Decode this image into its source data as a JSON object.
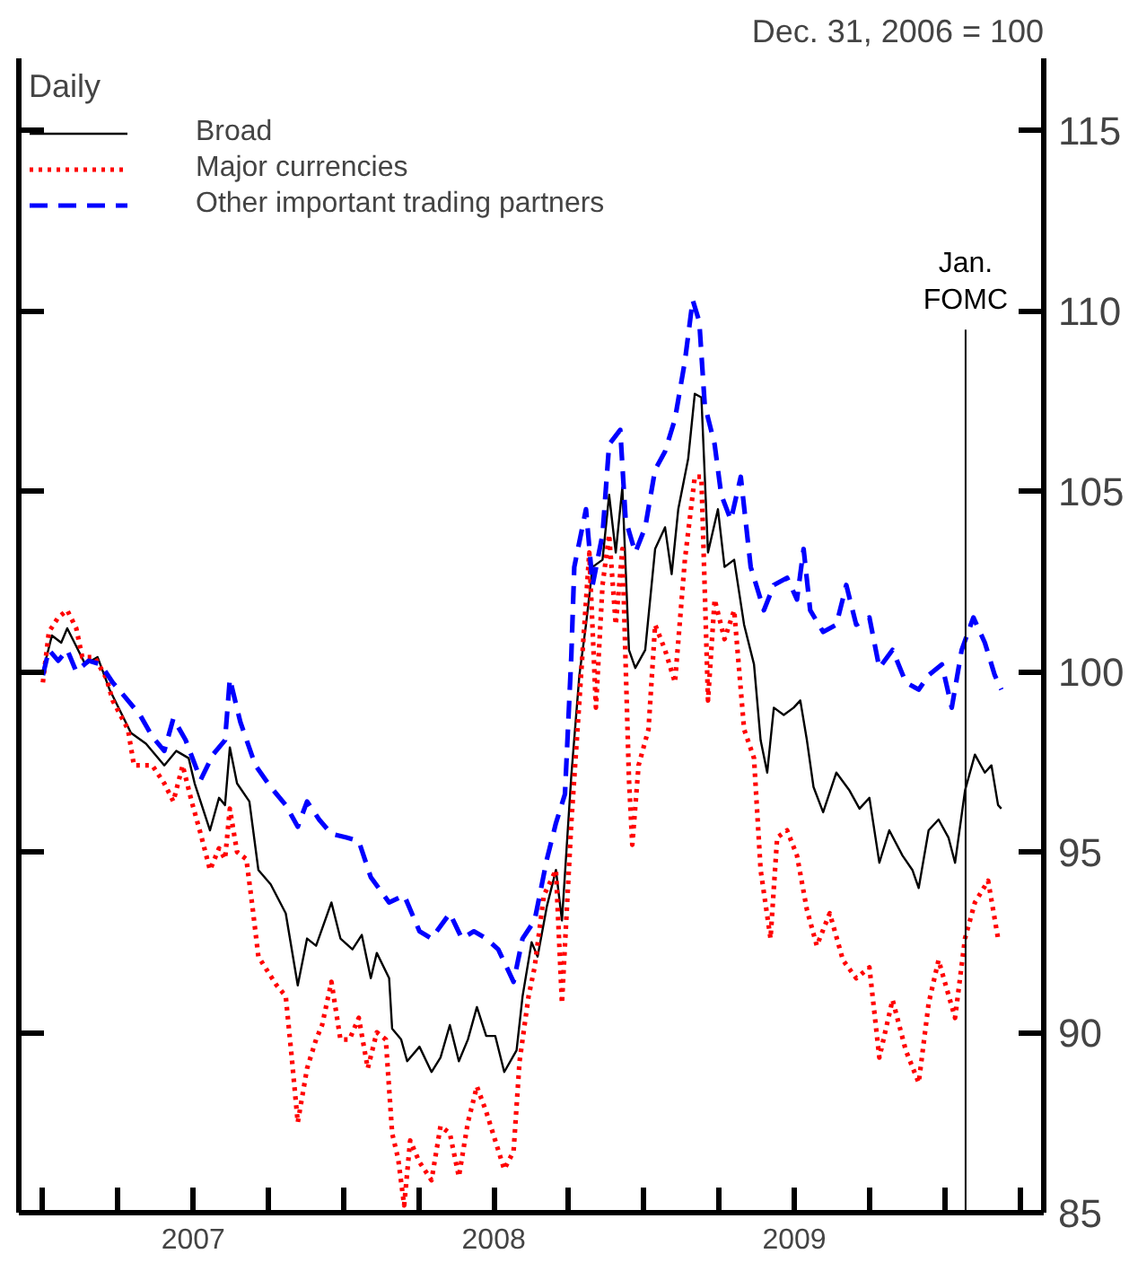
{
  "chart_data": {
    "type": "line",
    "ylabel": "Dec. 31, 2006 = 100",
    "legend_title": "Daily",
    "legend": "top left",
    "xlim": [
      2006.92,
      2010.33
    ],
    "ylim": [
      85,
      117
    ],
    "yticks": [
      85,
      90,
      95,
      100,
      105,
      110,
      115
    ],
    "xticks": [
      {
        "value": 2007,
        "label": null
      },
      {
        "value": 2007.25,
        "label": null
      },
      {
        "value": 2007.5,
        "label": "2007"
      },
      {
        "value": 2007.75,
        "label": null
      },
      {
        "value": 2008,
        "label": null
      },
      {
        "value": 2008.25,
        "label": null
      },
      {
        "value": 2008.5,
        "label": "2008"
      },
      {
        "value": 2008.75,
        "label": null
      },
      {
        "value": 2009,
        "label": null
      },
      {
        "value": 2009.25,
        "label": null
      },
      {
        "value": 2009.5,
        "label": "2009"
      },
      {
        "value": 2009.75,
        "label": null
      },
      {
        "value": 2010,
        "label": null
      },
      {
        "value": 2010.25,
        "label": null
      }
    ],
    "ref_lines": [
      {
        "axis": "x",
        "value": 2010.07,
        "label": "Jan.\nFOMC",
        "color": "#000000"
      }
    ],
    "series": [
      {
        "name": "Broad",
        "color": "#000000",
        "line_style": "solid",
        "x": [
          2007.0,
          2007.03,
          2007.061,
          2007.081,
          2007.111,
          2007.141,
          2007.182,
          2007.222,
          2007.293,
          2007.343,
          2007.404,
          2007.444,
          2007.485,
          2007.505,
          2007.556,
          2007.586,
          2007.606,
          2007.622,
          2007.646,
          2007.687,
          2007.717,
          2007.758,
          2007.808,
          2007.848,
          2007.879,
          2007.909,
          2007.96,
          2007.99,
          2008.03,
          2008.061,
          2008.091,
          2008.111,
          2008.152,
          2008.162,
          2008.192,
          2008.212,
          2008.253,
          2008.293,
          2008.323,
          2008.354,
          2008.384,
          2008.414,
          2008.444,
          2008.475,
          2008.505,
          2008.535,
          2008.576,
          2008.596,
          2008.626,
          2008.646,
          2008.677,
          2008.707,
          2008.727,
          2008.758,
          2008.785,
          2008.807,
          2008.829,
          2008.862,
          2008.884,
          2008.906,
          2008.928,
          2008.95,
          2008.971,
          2009.004,
          2009.037,
          2009.07,
          2009.092,
          2009.114,
          2009.147,
          2009.169,
          2009.191,
          2009.213,
          2009.246,
          2009.268,
          2009.3,
          2009.333,
          2009.366,
          2009.388,
          2009.41,
          2009.432,
          2009.465,
          2009.498,
          2009.52,
          2009.542,
          2009.564,
          2009.596,
          2009.64,
          2009.684,
          2009.717,
          2009.75,
          2009.783,
          2009.816,
          2009.86,
          2009.893,
          2009.914,
          2009.947,
          2009.98,
          2010.013,
          2010.035,
          2010.068,
          2010.101,
          2010.134,
          2010.156,
          2010.178,
          2010.189
        ],
        "values": [
          100.0,
          101.0,
          100.8,
          101.2,
          100.7,
          100.2,
          100.4,
          99.5,
          98.3,
          98.0,
          97.4,
          97.8,
          97.6,
          96.9,
          95.6,
          96.5,
          96.3,
          97.9,
          96.9,
          96.4,
          94.5,
          94.1,
          93.3,
          91.3,
          92.6,
          92.4,
          93.6,
          92.6,
          92.3,
          92.7,
          91.5,
          92.2,
          91.5,
          90.1,
          89.8,
          89.2,
          89.6,
          88.9,
          89.3,
          90.2,
          89.2,
          89.8,
          90.7,
          89.9,
          89.9,
          88.9,
          89.5,
          91.0,
          92.5,
          92.1,
          93.5,
          94.5,
          93.1,
          97.1,
          99.9,
          101.3,
          102.9,
          103.1,
          104.9,
          103.3,
          105.1,
          100.6,
          100.1,
          100.6,
          103.4,
          104.0,
          102.7,
          104.5,
          105.9,
          107.7,
          107.6,
          103.3,
          104.5,
          102.9,
          103.1,
          101.3,
          100.2,
          98.1,
          97.2,
          99.0,
          98.8,
          99.0,
          99.2,
          98.1,
          96.8,
          96.1,
          97.2,
          96.7,
          96.2,
          96.5,
          94.7,
          95.6,
          94.9,
          94.5,
          94.0,
          95.6,
          95.9,
          95.4,
          94.7,
          96.7,
          97.7,
          97.2,
          97.4,
          96.3,
          96.2
        ]
      },
      {
        "name": "Major currencies",
        "color": "#ff0000",
        "line_style": "dotted",
        "x": [
          2007.0,
          2007.02,
          2007.051,
          2007.081,
          2007.111,
          2007.131,
          2007.172,
          2007.212,
          2007.232,
          2007.283,
          2007.303,
          2007.364,
          2007.404,
          2007.434,
          2007.465,
          2007.495,
          2007.525,
          2007.556,
          2007.586,
          2007.606,
          2007.622,
          2007.646,
          2007.677,
          2007.697,
          2007.717,
          2007.747,
          2007.778,
          2007.808,
          2007.828,
          2007.848,
          2007.879,
          2007.909,
          2007.929,
          2007.96,
          2007.99,
          2008.02,
          2008.051,
          2008.081,
          2008.111,
          2008.141,
          2008.162,
          2008.182,
          2008.202,
          2008.222,
          2008.253,
          2008.293,
          2008.323,
          2008.354,
          2008.384,
          2008.414,
          2008.444,
          2008.475,
          2008.505,
          2008.535,
          2008.566,
          2008.586,
          2008.616,
          2008.636,
          2008.667,
          2008.707,
          2008.727,
          2008.758,
          2008.778,
          2008.796,
          2008.818,
          2008.84,
          2008.862,
          2008.884,
          2008.906,
          2008.928,
          2008.95,
          2008.961,
          2008.982,
          2009.015,
          2009.037,
          2009.07,
          2009.103,
          2009.136,
          2009.169,
          2009.191,
          2009.213,
          2009.235,
          2009.268,
          2009.3,
          2009.333,
          2009.366,
          2009.388,
          2009.421,
          2009.443,
          2009.476,
          2009.509,
          2009.542,
          2009.575,
          2009.618,
          2009.662,
          2009.706,
          2009.75,
          2009.783,
          2009.827,
          2009.871,
          2009.914,
          2009.947,
          2009.98,
          2010.035,
          2010.068,
          2010.101,
          2010.145,
          2010.178
        ],
        "values": [
          99.7,
          101.1,
          101.5,
          101.7,
          101.2,
          100.4,
          100.4,
          99.8,
          99.2,
          98.4,
          97.4,
          97.4,
          96.9,
          96.4,
          97.4,
          96.4,
          95.5,
          94.5,
          95.1,
          94.8,
          96.2,
          95.0,
          94.8,
          93.5,
          92.1,
          91.7,
          91.3,
          91.0,
          89.3,
          87.5,
          89.0,
          89.8,
          90.2,
          91.4,
          89.8,
          89.8,
          90.4,
          89.0,
          90.0,
          89.8,
          87.2,
          86.5,
          85.2,
          87.0,
          86.4,
          85.9,
          87.4,
          87.2,
          86.0,
          87.5,
          88.5,
          87.8,
          87.0,
          86.2,
          86.7,
          89.2,
          91.0,
          91.8,
          93.8,
          94.5,
          90.8,
          95.8,
          98.3,
          100.6,
          103.3,
          99.0,
          102.4,
          103.8,
          101.3,
          103.4,
          97.0,
          95.2,
          97.4,
          98.4,
          101.3,
          100.6,
          99.7,
          103.1,
          105.4,
          105.4,
          99.2,
          102.0,
          100.9,
          101.7,
          98.4,
          97.6,
          94.5,
          92.6,
          95.4,
          95.6,
          94.9,
          93.4,
          92.4,
          93.3,
          92.0,
          91.5,
          91.8,
          89.3,
          90.9,
          89.5,
          88.6,
          90.8,
          92.0,
          90.4,
          92.6,
          93.6,
          94.2,
          92.6
        ]
      },
      {
        "name": "Other important trading partners",
        "color": "#0000ff",
        "line_style": "dashed",
        "x": [
          2007.0,
          2007.02,
          2007.051,
          2007.081,
          2007.111,
          2007.152,
          2007.192,
          2007.232,
          2007.273,
          2007.323,
          2007.364,
          2007.404,
          2007.434,
          2007.475,
          2007.525,
          2007.566,
          2007.606,
          2007.622,
          2007.657,
          2007.707,
          2007.758,
          2007.808,
          2007.848,
          2007.879,
          2007.919,
          2007.96,
          2008.01,
          2008.051,
          2008.091,
          2008.152,
          2008.202,
          2008.253,
          2008.293,
          2008.354,
          2008.394,
          2008.434,
          2008.475,
          2008.515,
          2008.566,
          2008.596,
          2008.636,
          2008.677,
          2008.707,
          2008.737,
          2008.758,
          2008.768,
          2008.807,
          2008.829,
          2008.862,
          2008.884,
          2008.921,
          2008.939,
          2008.971,
          2009.004,
          2009.037,
          2009.07,
          2009.103,
          2009.136,
          2009.162,
          2009.184,
          2009.202,
          2009.235,
          2009.257,
          2009.289,
          2009.322,
          2009.355,
          2009.399,
          2009.432,
          2009.476,
          2009.509,
          2009.531,
          2009.553,
          2009.596,
          2009.64,
          2009.673,
          2009.706,
          2009.75,
          2009.783,
          2009.827,
          2009.871,
          2009.914,
          2009.947,
          2009.991,
          2010.024,
          2010.057,
          2010.096,
          2010.134,
          2010.167,
          2010.189
        ],
        "values": [
          99.9,
          100.6,
          100.3,
          100.6,
          100.0,
          100.3,
          100.2,
          99.7,
          99.3,
          98.8,
          98.2,
          97.8,
          98.7,
          98.1,
          97.0,
          97.7,
          98.1,
          99.8,
          98.6,
          97.4,
          96.8,
          96.3,
          95.7,
          96.4,
          95.9,
          95.5,
          95.4,
          95.3,
          94.3,
          93.6,
          93.8,
          92.8,
          92.6,
          93.3,
          92.6,
          92.8,
          92.6,
          92.3,
          91.4,
          92.6,
          93.1,
          94.8,
          95.8,
          96.6,
          100.4,
          102.9,
          104.5,
          102.4,
          103.8,
          106.3,
          106.7,
          104.2,
          103.3,
          104.0,
          105.6,
          106.1,
          107.0,
          108.6,
          110.3,
          109.7,
          107.4,
          106.3,
          104.9,
          104.2,
          105.4,
          102.9,
          101.7,
          102.4,
          102.6,
          102.0,
          103.4,
          101.7,
          101.1,
          101.3,
          102.4,
          101.3,
          101.5,
          100.1,
          100.6,
          99.7,
          99.5,
          99.9,
          100.2,
          99.0,
          100.6,
          101.5,
          100.8,
          99.9,
          99.5
        ]
      }
    ]
  }
}
